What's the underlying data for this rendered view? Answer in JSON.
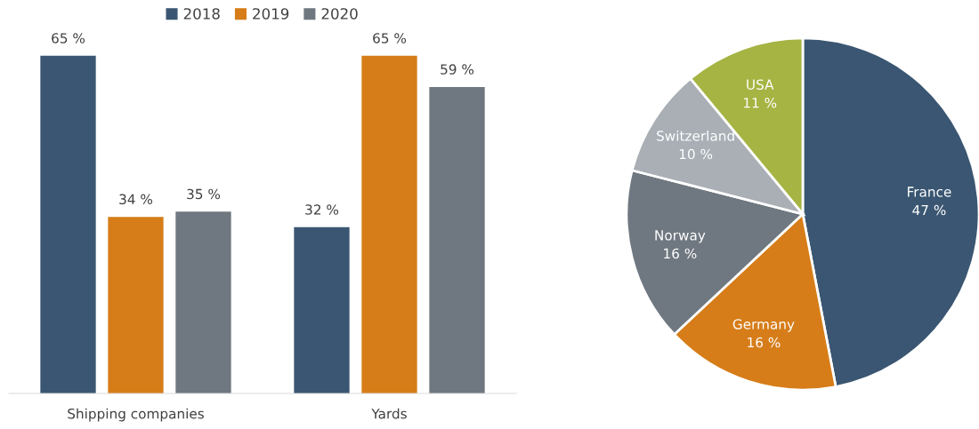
{
  "chart_data": [
    {
      "type": "bar",
      "categories": [
        "Shipping companies",
        "Yards"
      ],
      "legend": "top",
      "data_labels": true,
      "series": [
        {
          "name": "2018",
          "color": "#3a5672",
          "values": [
            65,
            32
          ],
          "value_labels": [
            "65 %",
            "32 %"
          ]
        },
        {
          "name": "2019",
          "color": "#d67d19",
          "values": [
            34,
            65
          ],
          "value_labels": [
            "34 %",
            "65 %"
          ]
        },
        {
          "name": "2020",
          "color": "#6f7880",
          "values": [
            35,
            59
          ],
          "value_labels": [
            "35 %",
            "59 %"
          ]
        }
      ]
    },
    {
      "type": "pie",
      "categories": [
        "France",
        "Germany",
        "Norway",
        "Switzerland",
        "USA"
      ],
      "values": [
        47,
        16,
        16,
        10,
        11
      ],
      "value_labels": [
        "47 %",
        "16 %",
        "16 %",
        "10 %",
        "11 %"
      ],
      "data_labels": true,
      "colors": [
        "#3a5672",
        "#d67d19",
        "#6f7880",
        "#a9afb5",
        "#a5b442"
      ]
    }
  ]
}
